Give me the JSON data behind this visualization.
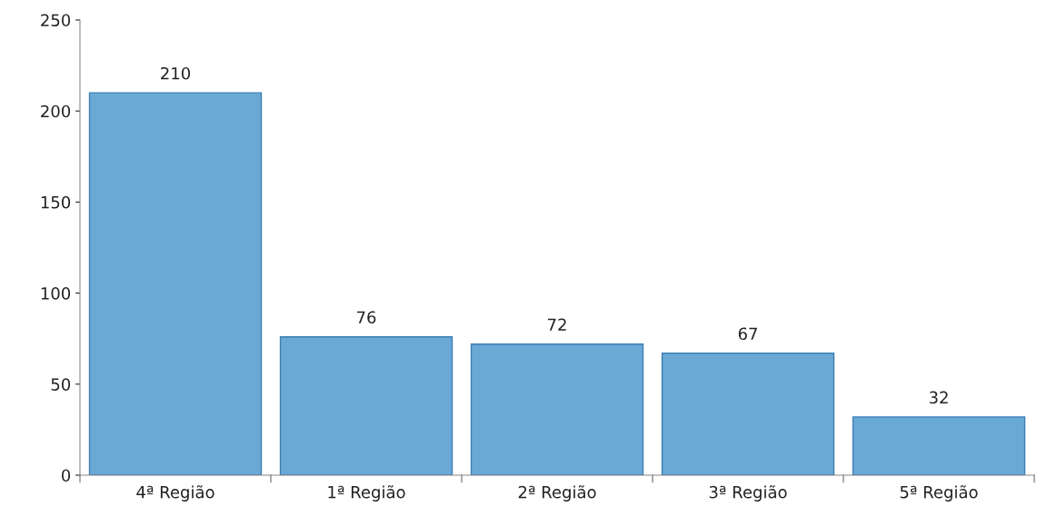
{
  "chart_data": {
    "type": "bar",
    "categories": [
      "4ª Região",
      "1ª Região",
      "2ª Região",
      "3ª Região",
      "5ª Região"
    ],
    "values": [
      210,
      76,
      72,
      67,
      32
    ],
    "color": "#6aa8d6",
    "ylim": [
      0,
      250
    ],
    "yticks": [
      0,
      50,
      100,
      150,
      200,
      250
    ],
    "data_labels": true,
    "grid": false,
    "legend": false
  }
}
